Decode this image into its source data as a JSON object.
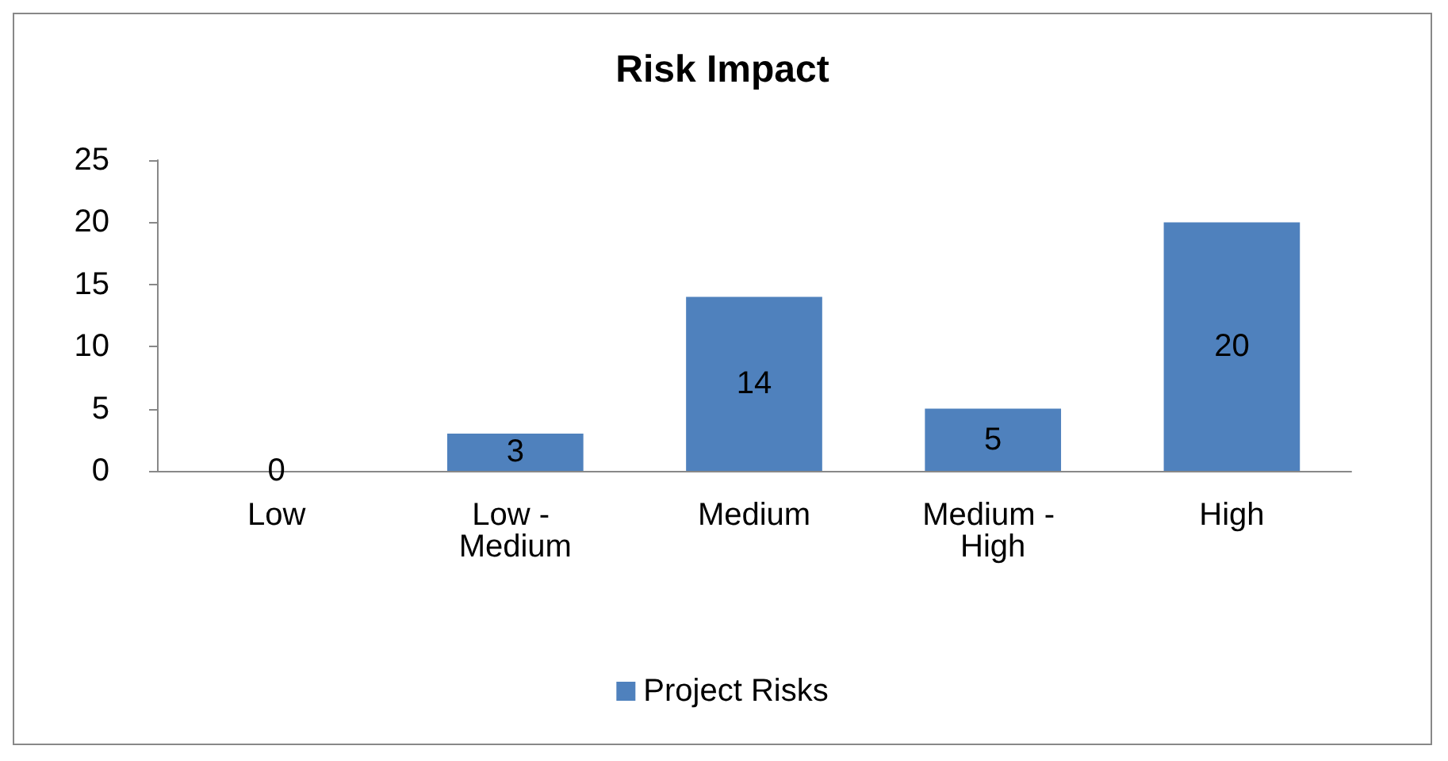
{
  "chart_data": {
    "type": "bar",
    "title": "Risk Impact",
    "categories": [
      "Low",
      "Low - Medium",
      "Medium",
      "Medium - High",
      "High"
    ],
    "series": [
      {
        "name": "Project Risks",
        "color": "#4f81bd",
        "values": [
          0,
          3,
          14,
          5,
          20
        ]
      }
    ],
    "ylim": [
      0,
      25
    ],
    "yticks": [
      0,
      5,
      10,
      15,
      20,
      25
    ],
    "grid": false,
    "legend": "bottom",
    "data_labels": true
  }
}
